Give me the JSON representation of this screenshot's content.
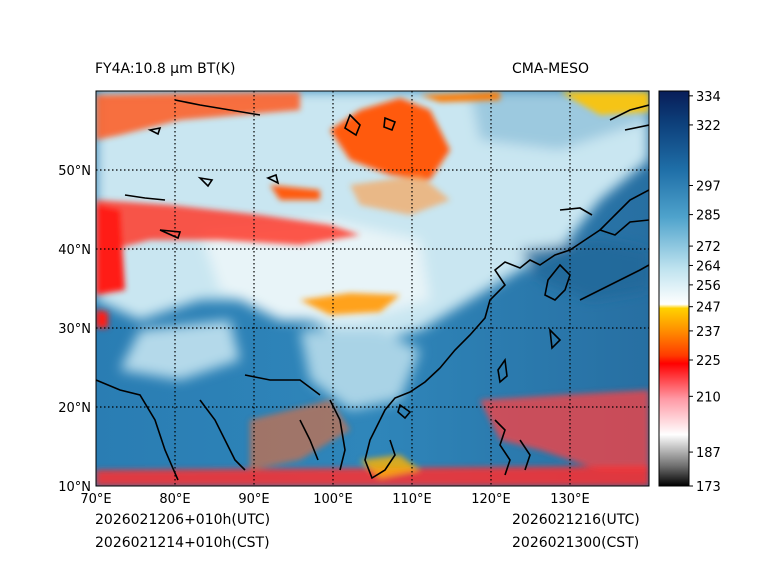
{
  "header": {
    "left_title": "FY4A:10.8 μm BT(K)",
    "right_title": "CMA-MESO"
  },
  "map": {
    "lon_labels": [
      "70°E",
      "80°E",
      "90°E",
      "100°E",
      "110°E",
      "120°E",
      "130°E"
    ],
    "lon_values": [
      70,
      80,
      90,
      100,
      110,
      120,
      130
    ],
    "lat_labels": [
      "10°N",
      "20°N",
      "30°N",
      "40°N",
      "50°N"
    ],
    "lat_values": [
      10,
      20,
      30,
      40,
      50
    ],
    "lon_range": [
      70,
      140
    ],
    "lat_range": [
      10,
      60
    ]
  },
  "colorbar": {
    "tick_labels": [
      "334",
      "322",
      "297",
      "285",
      "272",
      "264",
      "256",
      "247",
      "237",
      "225",
      "210",
      "187",
      "173"
    ],
    "tick_values": [
      334,
      322,
      297,
      285,
      272,
      264,
      256,
      247,
      237,
      225,
      210,
      187,
      173
    ],
    "value_range": [
      173,
      336
    ],
    "colors": [
      "#000000",
      "#6e6e6e",
      "#ffffff",
      "#ff9aa6",
      "#ff0000",
      "#ff8a00",
      "#ffd200",
      "#ffffff",
      "#bfe3ef",
      "#4fa3cc",
      "#1f6fa8",
      "#081d58"
    ]
  },
  "footer": {
    "left_line1": "2026021206+010h(UTC)",
    "left_line2": "2026021214+010h(CST)",
    "right_line1": "2026021216(UTC)",
    "right_line2": "2026021300(CST)"
  }
}
